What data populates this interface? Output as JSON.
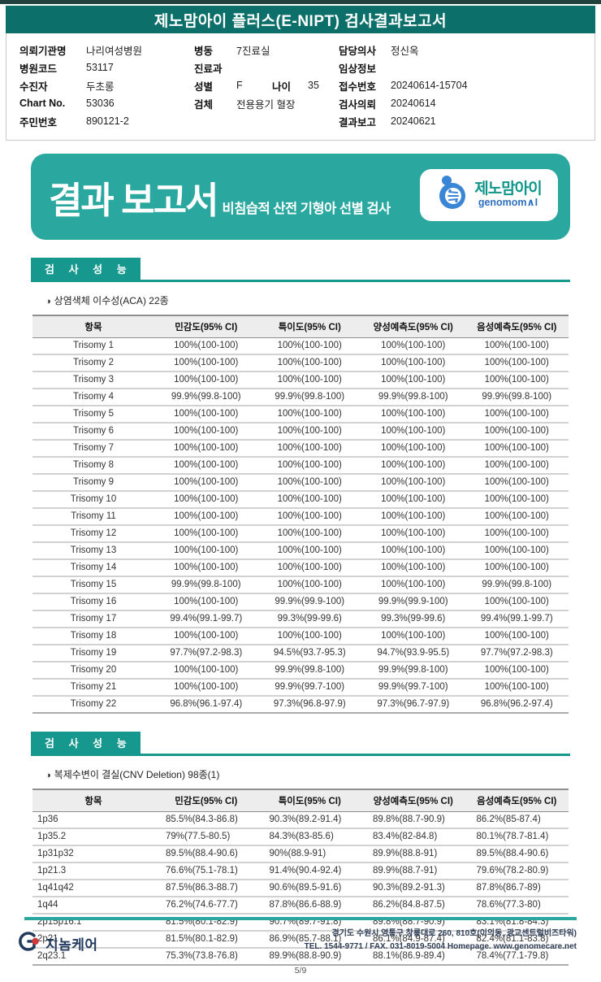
{
  "page": {
    "title": "제노맘아이 플러스(E-NIPT) 검사결과보고서",
    "page_number": "5/9"
  },
  "colors": {
    "banner_teal": "#0d6f6a",
    "box_teal": "#2aa8a0",
    "section_teal": "#17988e",
    "logo_blue": "#3a86d6",
    "logo_teal": "#11968b",
    "footer_navy": "#223a5e",
    "logo_red": "#d13a3a"
  },
  "patient_info": {
    "col1": [
      {
        "label": "의뢰기관명",
        "value": "나리여성병원"
      },
      {
        "label": "병원코드",
        "value": "53117"
      },
      {
        "label": "수진자",
        "value": "두초롱"
      },
      {
        "label": "Chart No.",
        "value": "53036"
      },
      {
        "label": "주민번호",
        "value": "890121-2"
      }
    ],
    "col2": [
      {
        "label": "병동",
        "value": "7진료실"
      },
      {
        "label": "진료과",
        "value": ""
      },
      {
        "label": "성별",
        "value": "F",
        "label2": "나이",
        "value2": "35"
      },
      {
        "label": "검체",
        "value": "전용용기 혈장"
      }
    ],
    "col3": [
      {
        "label": "담당의사",
        "value": "정신옥"
      },
      {
        "label": "임상정보",
        "value": ""
      },
      {
        "label": "접수번호",
        "value": "20240614-15704"
      },
      {
        "label": "검사의뢰",
        "value": "20240614"
      },
      {
        "label": "결과보고",
        "value": "20240621"
      }
    ]
  },
  "report_box": {
    "title": "결과 보고서",
    "subtitle": "비침습적 산전 기형아 선별 검사",
    "brand": {
      "name_ko": "제노맘아이",
      "name_en": "genomom∧I"
    }
  },
  "sections": [
    {
      "header": "검 사 성 능",
      "bullet": "◑",
      "subtitle": "상염색체 이수성(ACA) 22종",
      "table": {
        "headers": [
          "항목",
          "민감도(95% CI)",
          "특이도(95% CI)",
          "양성예측도(95% CI)",
          "음성예측도(95% CI)"
        ],
        "rows": [
          [
            "Trisomy 1",
            "100%(100-100)",
            "100%(100-100)",
            "100%(100-100)",
            "100%(100-100)"
          ],
          [
            "Trisomy 2",
            "100%(100-100)",
            "100%(100-100)",
            "100%(100-100)",
            "100%(100-100)"
          ],
          [
            "Trisomy 3",
            "100%(100-100)",
            "100%(100-100)",
            "100%(100-100)",
            "100%(100-100)"
          ],
          [
            "Trisomy 4",
            "99.9%(99.8-100)",
            "99.9%(99.8-100)",
            "99.9%(99.8-100)",
            "99.9%(99.8-100)"
          ],
          [
            "Trisomy 5",
            "100%(100-100)",
            "100%(100-100)",
            "100%(100-100)",
            "100%(100-100)"
          ],
          [
            "Trisomy 6",
            "100%(100-100)",
            "100%(100-100)",
            "100%(100-100)",
            "100%(100-100)"
          ],
          [
            "Trisomy 7",
            "100%(100-100)",
            "100%(100-100)",
            "100%(100-100)",
            "100%(100-100)"
          ],
          [
            "Trisomy 8",
            "100%(100-100)",
            "100%(100-100)",
            "100%(100-100)",
            "100%(100-100)"
          ],
          [
            "Trisomy 9",
            "100%(100-100)",
            "100%(100-100)",
            "100%(100-100)",
            "100%(100-100)"
          ],
          [
            "Trisomy 10",
            "100%(100-100)",
            "100%(100-100)",
            "100%(100-100)",
            "100%(100-100)"
          ],
          [
            "Trisomy 11",
            "100%(100-100)",
            "100%(100-100)",
            "100%(100-100)",
            "100%(100-100)"
          ],
          [
            "Trisomy 12",
            "100%(100-100)",
            "100%(100-100)",
            "100%(100-100)",
            "100%(100-100)"
          ],
          [
            "Trisomy 13",
            "100%(100-100)",
            "100%(100-100)",
            "100%(100-100)",
            "100%(100-100)"
          ],
          [
            "Trisomy 14",
            "100%(100-100)",
            "100%(100-100)",
            "100%(100-100)",
            "100%(100-100)"
          ],
          [
            "Trisomy 15",
            "99.9%(99.8-100)",
            "100%(100-100)",
            "100%(100-100)",
            "99.9%(99.8-100)"
          ],
          [
            "Trisomy 16",
            "100%(100-100)",
            "99.9%(99.9-100)",
            "99.9%(99.9-100)",
            "100%(100-100)"
          ],
          [
            "Trisomy 17",
            "99.4%(99.1-99.7)",
            "99.3%(99-99.6)",
            "99.3%(99-99.6)",
            "99.4%(99.1-99.7)"
          ],
          [
            "Trisomy 18",
            "100%(100-100)",
            "100%(100-100)",
            "100%(100-100)",
            "100%(100-100)"
          ],
          [
            "Trisomy 19",
            "97.7%(97.2-98.3)",
            "94.5%(93.7-95.3)",
            "94.7%(93.9-95.5)",
            "97.7%(97.2-98.3)"
          ],
          [
            "Trisomy 20",
            "100%(100-100)",
            "99.9%(99.8-100)",
            "99.9%(99.8-100)",
            "100%(100-100)"
          ],
          [
            "Trisomy 21",
            "100%(100-100)",
            "99.9%(99.7-100)",
            "99.9%(99.7-100)",
            "100%(100-100)"
          ],
          [
            "Trisomy 22",
            "96.8%(96.1-97.4)",
            "97.3%(96.8-97.9)",
            "97.3%(96.7-97.9)",
            "96.8%(96.2-97.4)"
          ]
        ]
      }
    },
    {
      "header": "검 사 성 능",
      "bullet": "◑",
      "subtitle": "복제수변이 결실(CNV Deletion) 98종(1)",
      "table": {
        "headers": [
          "항목",
          "민감도(95% CI)",
          "특이도(95% CI)",
          "양성예측도(95% CI)",
          "음성예측도(95% CI)"
        ],
        "rows": [
          [
            "1p36",
            "85.5%(84.3-86.8)",
            "90.3%(89.2-91.4)",
            "89.8%(88.7-90.9)",
            "86.2%(85-87.4)"
          ],
          [
            "1p35.2",
            "79%(77.5-80.5)",
            "84.3%(83-85.6)",
            "83.4%(82-84.8)",
            "80.1%(78.7-81.4)"
          ],
          [
            "1p31p32",
            "89.5%(88.4-90.6)",
            "90%(88.9-91)",
            "89.9%(88.8-91)",
            "89.5%(88.4-90.6)"
          ],
          [
            "1p21.3",
            "76.6%(75.1-78.1)",
            "91.4%(90.4-92.4)",
            "89.9%(88.7-91)",
            "79.6%(78.2-80.9)"
          ],
          [
            "1q41q42",
            "87.5%(86.3-88.7)",
            "90.6%(89.5-91.6)",
            "90.3%(89.2-91.3)",
            "87.8%(86.7-89)"
          ],
          [
            "1q44",
            "76.2%(74.6-77.7)",
            "87.8%(86.6-88.9)",
            "86.2%(84.8-87.5)",
            "78.6%(77.3-80)"
          ],
          [
            "2p15p16.1",
            "81.5%(80.1-82.9)",
            "90.7%(89.7-91.8)",
            "89.8%(88.7-90.9)",
            "83.1%(81.8-84.3)"
          ],
          [
            "2p21",
            "81.5%(80.1-82.9)",
            "86.9%(85.7-88.1)",
            "86.1%(84.9-87.4)",
            "82.4%(81.1-83.8)"
          ],
          [
            "2q23.1",
            "75.3%(73.8-76.8)",
            "89.9%(88.8-90.9)",
            "88.1%(86.9-89.4)",
            "78.4%(77.1-79.8)"
          ]
        ]
      }
    }
  ],
  "footer": {
    "company": "지놈케어",
    "address": "경기도 수원시 영통구 창룡대로 260, 810호(이의동, 광교센트럴비즈타워)",
    "contact": "TEL. 1544-9771 / FAX. 031-8019-5004 Homepage. www.genomecare.net"
  }
}
